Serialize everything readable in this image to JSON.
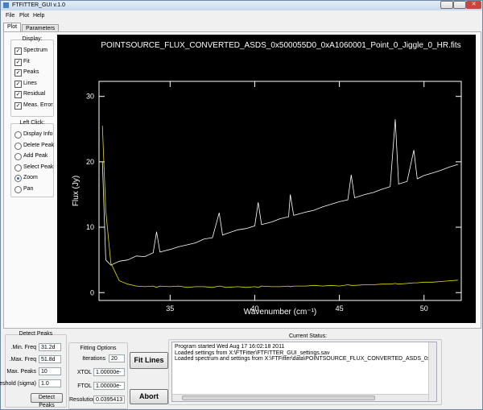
{
  "window": {
    "title": "FTFITTER_GUI v.1.0"
  },
  "menu": [
    "File",
    "Plot",
    "Help"
  ],
  "tabs": [
    "Plot",
    "Parameters"
  ],
  "display": {
    "title": "Display:",
    "options": [
      "Spectrum",
      "Fit",
      "Peaks",
      "Lines",
      "Residual",
      "Meas. Error"
    ]
  },
  "left_click": {
    "title": "Left Click:",
    "options": [
      "Display Info",
      "Delete Peak",
      "Add Peak",
      "Select Peak",
      "Zoom",
      "Pan"
    ]
  },
  "chart_data": {
    "type": "line",
    "title": "POINTSOURCE_FLUX_CONVERTED_ASDS_0x500055D0_0xA1060001_Point_0_Jiggle_0_HR.fits",
    "xlabel": "Wavenumber (cm⁻¹)",
    "ylabel": "Flux (Jy)",
    "x": [
      31.0,
      31.2,
      31.5,
      32,
      32.5,
      33,
      33.5,
      34,
      34.2,
      34.4,
      35,
      35.5,
      36,
      36.5,
      37,
      37.5,
      37.9,
      38.1,
      38.3,
      39,
      39.5,
      40,
      40.2,
      40.4,
      41,
      41.5,
      42,
      42.1,
      42.3,
      43,
      43.5,
      44,
      44.5,
      45,
      45.5,
      45.7,
      45.9,
      46.5,
      47,
      47.5,
      48,
      48.3,
      48.5,
      49,
      49.4,
      49.6,
      50,
      50.5,
      51,
      51.5,
      52
    ],
    "series": [
      {
        "color": "#ffffff",
        "values": [
          20,
          5,
          4.2,
          4.8,
          5.0,
          5.6,
          5.5,
          6.1,
          9.3,
          6.2,
          6.6,
          7.0,
          7.3,
          7.6,
          8.2,
          8.4,
          12.2,
          8.8,
          9.0,
          9.6,
          9.8,
          10.2,
          13.8,
          10.4,
          10.8,
          11.3,
          11.6,
          15.0,
          11.8,
          12.3,
          12.6,
          13.1,
          13.5,
          13.9,
          14.2,
          18.0,
          14.5,
          15.0,
          15.3,
          15.8,
          16.2,
          26.5,
          16.6,
          17.0,
          21.8,
          17.4,
          17.9,
          18.3,
          18.7,
          19.2,
          19.6
        ]
      },
      {
        "color": "#e8e000",
        "values": [
          25.5,
          12.5,
          4.5,
          1.8,
          1.3,
          1.0,
          0.9,
          1.0,
          0.8,
          1.0,
          0.9,
          1.0,
          0.8,
          0.9,
          0.9,
          0.8,
          1.0,
          0.9,
          0.8,
          0.9,
          0.8,
          0.9,
          0.8,
          1.0,
          0.9,
          0.9,
          1.0,
          0.9,
          1.0,
          1.0,
          1.1,
          1.0,
          1.1,
          1.0,
          1.2,
          1.1,
          1.1,
          1.2,
          1.2,
          1.3,
          1.3,
          1.4,
          1.3,
          1.4,
          1.5,
          1.5,
          1.6,
          1.6,
          1.7,
          1.8,
          1.9
        ]
      }
    ],
    "xlim": [
      30.8,
      52.2
    ],
    "xticks": [
      35,
      40,
      45,
      50
    ],
    "ylim": [
      -1.2,
      32.3
    ],
    "yticks": [
      0,
      10,
      20,
      30
    ]
  },
  "detect_peaks": {
    "title": "Detect Peaks",
    "fields": [
      {
        "label": "Min. Freq.",
        "value": "31.2d"
      },
      {
        "label": "Max. Freq.",
        "value": "51.8d"
      },
      {
        "label": "Max. Peaks",
        "value": "10"
      },
      {
        "label": "Threshold (sigma)",
        "value": "1.0"
      }
    ],
    "button": "Detect Peaks"
  },
  "fitting_options": {
    "title": "Fitting Options",
    "fields": [
      {
        "label": "Iterations",
        "value": "20"
      },
      {
        "label": "XTOL",
        "value": "1.00000e-010"
      },
      {
        "label": "FTOL",
        "value": "1.00000e-010"
      },
      {
        "label": "Resolution",
        "value": "0.0395413"
      }
    ]
  },
  "buttons": [
    "Fit Lines",
    "Abort"
  ],
  "status": {
    "title": "Current Status:",
    "lines": [
      "Program started Wed Aug 17 16:02:18 2011",
      "Loaded settings from X:\\FTFitter\\FTFITTER_GUI_settings.sav",
      "Loaded spectrum and settings from X:\\FTFitter\\data\\POINTSOURCE_FLUX_CONVERTED_ASDS_0x500055D0_0xA1060001_"
    ]
  }
}
